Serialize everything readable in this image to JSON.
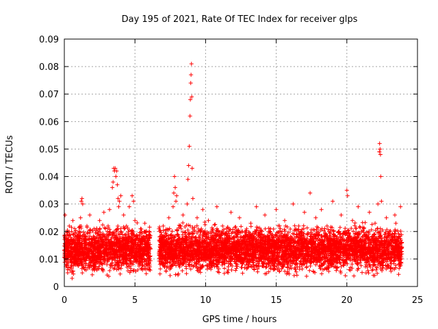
{
  "chart_data": {
    "type": "scatter",
    "title": "Day 195 of 2021, Rate Of TEC Index for receiver glps",
    "xlabel": "GPS time / hours",
    "ylabel": "ROTI / TECUs",
    "xlim": [
      0,
      25
    ],
    "ylim": [
      0,
      0.09
    ],
    "xticks": [
      0,
      5,
      10,
      15,
      20,
      25
    ],
    "yticks": [
      0,
      0.01,
      0.02,
      0.03,
      0.04,
      0.05,
      0.06,
      0.07,
      0.08,
      0.09
    ],
    "ytick_labels": [
      "0",
      "0.01",
      "0.02",
      "0.03",
      "0.04",
      "0.05",
      "0.06",
      "0.07",
      "0.08",
      "0.09"
    ],
    "xtick_labels": [
      "0",
      "5",
      "10",
      "15",
      "20",
      "25"
    ],
    "grid": true,
    "marker": "+",
    "series": [
      {
        "name": "ROTI",
        "color": "#ff0000",
        "points": [
          [
            0.05,
            0.026
          ],
          [
            0.1,
            0.014
          ],
          [
            0.2,
            0.009
          ],
          [
            0.3,
            0.017
          ],
          [
            0.35,
            0.022
          ],
          [
            0.4,
            0.006
          ],
          [
            0.5,
            0.012
          ],
          [
            0.55,
            0.003
          ],
          [
            0.6,
            0.024
          ],
          [
            0.7,
            0.011
          ],
          [
            0.8,
            0.016
          ],
          [
            0.9,
            0.008
          ],
          [
            1.0,
            0.019
          ],
          [
            1.1,
            0.013
          ],
          [
            1.15,
            0.025
          ],
          [
            1.2,
            0.031
          ],
          [
            1.25,
            0.032
          ],
          [
            1.3,
            0.03
          ],
          [
            1.4,
            0.01
          ],
          [
            1.5,
            0.018
          ],
          [
            1.6,
            0.022
          ],
          [
            1.7,
            0.014
          ],
          [
            1.8,
            0.026
          ],
          [
            1.9,
            0.009
          ],
          [
            2.0,
            0.015
          ],
          [
            2.1,
            0.021
          ],
          [
            2.2,
            0.012
          ],
          [
            2.3,
            0.006
          ],
          [
            2.4,
            0.019
          ],
          [
            2.5,
            0.024
          ],
          [
            2.6,
            0.013
          ],
          [
            2.7,
            0.008
          ],
          [
            2.8,
            0.027
          ],
          [
            2.9,
            0.017
          ],
          [
            3.0,
            0.011
          ],
          [
            3.1,
            0.022
          ],
          [
            3.2,
            0.028
          ],
          [
            3.3,
            0.014
          ],
          [
            3.4,
            0.036
          ],
          [
            3.45,
            0.038
          ],
          [
            3.5,
            0.043
          ],
          [
            3.55,
            0.042
          ],
          [
            3.6,
            0.043
          ],
          [
            3.65,
            0.04
          ],
          [
            3.7,
            0.042
          ],
          [
            3.75,
            0.037
          ],
          [
            3.8,
            0.032
          ],
          [
            3.85,
            0.029
          ],
          [
            3.9,
            0.031
          ],
          [
            4.0,
            0.033
          ],
          [
            4.1,
            0.019
          ],
          [
            4.2,
            0.026
          ],
          [
            4.3,
            0.01
          ],
          [
            4.4,
            0.022
          ],
          [
            4.5,
            0.016
          ],
          [
            4.6,
            0.029
          ],
          [
            4.7,
            0.012
          ],
          [
            4.8,
            0.033
          ],
          [
            4.9,
            0.031
          ],
          [
            5.0,
            0.024
          ],
          [
            5.1,
            0.018
          ],
          [
            5.2,
            0.006
          ],
          [
            5.3,
            0.014
          ],
          [
            5.4,
            0.021
          ],
          [
            5.5,
            0.01
          ],
          [
            5.6,
            0.017
          ],
          [
            5.7,
            0.023
          ],
          [
            5.8,
            0.009
          ],
          [
            5.9,
            0.015
          ],
          [
            6.0,
            0.012
          ],
          [
            6.7,
            0.021
          ],
          [
            6.8,
            0.01
          ],
          [
            6.9,
            0.014
          ],
          [
            7.0,
            0.022
          ],
          [
            7.1,
            0.007
          ],
          [
            7.2,
            0.017
          ],
          [
            7.3,
            0.012
          ],
          [
            7.4,
            0.025
          ],
          [
            7.5,
            0.009
          ],
          [
            7.6,
            0.015
          ],
          [
            7.7,
            0.029
          ],
          [
            7.75,
            0.034
          ],
          [
            7.8,
            0.04
          ],
          [
            7.85,
            0.036
          ],
          [
            7.9,
            0.031
          ],
          [
            7.95,
            0.033
          ],
          [
            8.0,
            0.019
          ],
          [
            8.1,
            0.008
          ],
          [
            8.2,
            0.022
          ],
          [
            8.3,
            0.013
          ],
          [
            8.4,
            0.026
          ],
          [
            8.5,
            0.01
          ],
          [
            8.6,
            0.018
          ],
          [
            8.7,
            0.03
          ],
          [
            8.75,
            0.039
          ],
          [
            8.8,
            0.044
          ],
          [
            8.85,
            0.051
          ],
          [
            8.9,
            0.062
          ],
          [
            8.92,
            0.068
          ],
          [
            8.95,
            0.074
          ],
          [
            8.97,
            0.077
          ],
          [
            9.0,
            0.081
          ],
          [
            9.02,
            0.069
          ],
          [
            9.05,
            0.043
          ],
          [
            9.1,
            0.032
          ],
          [
            9.2,
            0.02
          ],
          [
            9.3,
            0.011
          ],
          [
            9.4,
            0.025
          ],
          [
            9.5,
            0.016
          ],
          [
            9.6,
            0.007
          ],
          [
            9.7,
            0.021
          ],
          [
            9.8,
            0.028
          ],
          [
            9.9,
            0.013
          ],
          [
            10.0,
            0.019
          ],
          [
            10.2,
            0.024
          ],
          [
            10.4,
            0.009
          ],
          [
            10.6,
            0.017
          ],
          [
            10.8,
            0.029
          ],
          [
            11.0,
            0.012
          ],
          [
            11.2,
            0.022
          ],
          [
            11.4,
            0.015
          ],
          [
            11.6,
            0.006
          ],
          [
            11.8,
            0.027
          ],
          [
            12.0,
            0.018
          ],
          [
            12.2,
            0.011
          ],
          [
            12.4,
            0.025
          ],
          [
            12.6,
            0.014
          ],
          [
            12.8,
            0.02
          ],
          [
            13.0,
            0.008
          ],
          [
            13.2,
            0.023
          ],
          [
            13.4,
            0.016
          ],
          [
            13.6,
            0.029
          ],
          [
            13.8,
            0.012
          ],
          [
            14.0,
            0.019
          ],
          [
            14.2,
            0.026
          ],
          [
            14.4,
            0.01
          ],
          [
            14.6,
            0.021
          ],
          [
            14.8,
            0.015
          ],
          [
            15.0,
            0.028
          ],
          [
            15.2,
            0.011
          ],
          [
            15.4,
            0.018
          ],
          [
            15.6,
            0.024
          ],
          [
            15.8,
            0.009
          ],
          [
            16.0,
            0.017
          ],
          [
            16.2,
            0.03
          ],
          [
            16.4,
            0.013
          ],
          [
            16.6,
            0.022
          ],
          [
            16.8,
            0.016
          ],
          [
            17.0,
            0.027
          ],
          [
            17.2,
            0.01
          ],
          [
            17.4,
            0.034
          ],
          [
            17.6,
            0.019
          ],
          [
            17.8,
            0.025
          ],
          [
            18.0,
            0.012
          ],
          [
            18.2,
            0.028
          ],
          [
            18.4,
            0.017
          ],
          [
            18.6,
            0.022
          ],
          [
            18.8,
            0.008
          ],
          [
            19.0,
            0.031
          ],
          [
            19.2,
            0.014
          ],
          [
            19.4,
            0.02
          ],
          [
            19.6,
            0.026
          ],
          [
            19.8,
            0.011
          ],
          [
            20.0,
            0.035
          ],
          [
            20.05,
            0.033
          ],
          [
            20.2,
            0.018
          ],
          [
            20.4,
            0.024
          ],
          [
            20.6,
            0.009
          ],
          [
            20.8,
            0.029
          ],
          [
            21.0,
            0.016
          ],
          [
            21.2,
            0.021
          ],
          [
            21.4,
            0.012
          ],
          [
            21.6,
            0.027
          ],
          [
            21.8,
            0.018
          ],
          [
            22.0,
            0.023
          ],
          [
            22.2,
            0.03
          ],
          [
            22.3,
            0.049
          ],
          [
            22.32,
            0.052
          ],
          [
            22.35,
            0.05
          ],
          [
            22.38,
            0.048
          ],
          [
            22.4,
            0.04
          ],
          [
            22.45,
            0.031
          ],
          [
            22.6,
            0.014
          ],
          [
            22.8,
            0.025
          ],
          [
            23.0,
            0.01
          ],
          [
            23.2,
            0.019
          ],
          [
            23.4,
            0.026
          ],
          [
            23.6,
            0.013
          ],
          [
            23.8,
            0.029
          ]
        ],
        "dense_band": {
          "description": "dense cloud of ROTI measurements",
          "segments": [
            {
              "x_start": 0.0,
              "x_end": 6.1,
              "y_min": 0.003,
              "y_max": 0.024
            },
            {
              "x_start": 6.7,
              "x_end": 23.9,
              "y_min": 0.003,
              "y_max": 0.024
            }
          ]
        }
      }
    ]
  }
}
